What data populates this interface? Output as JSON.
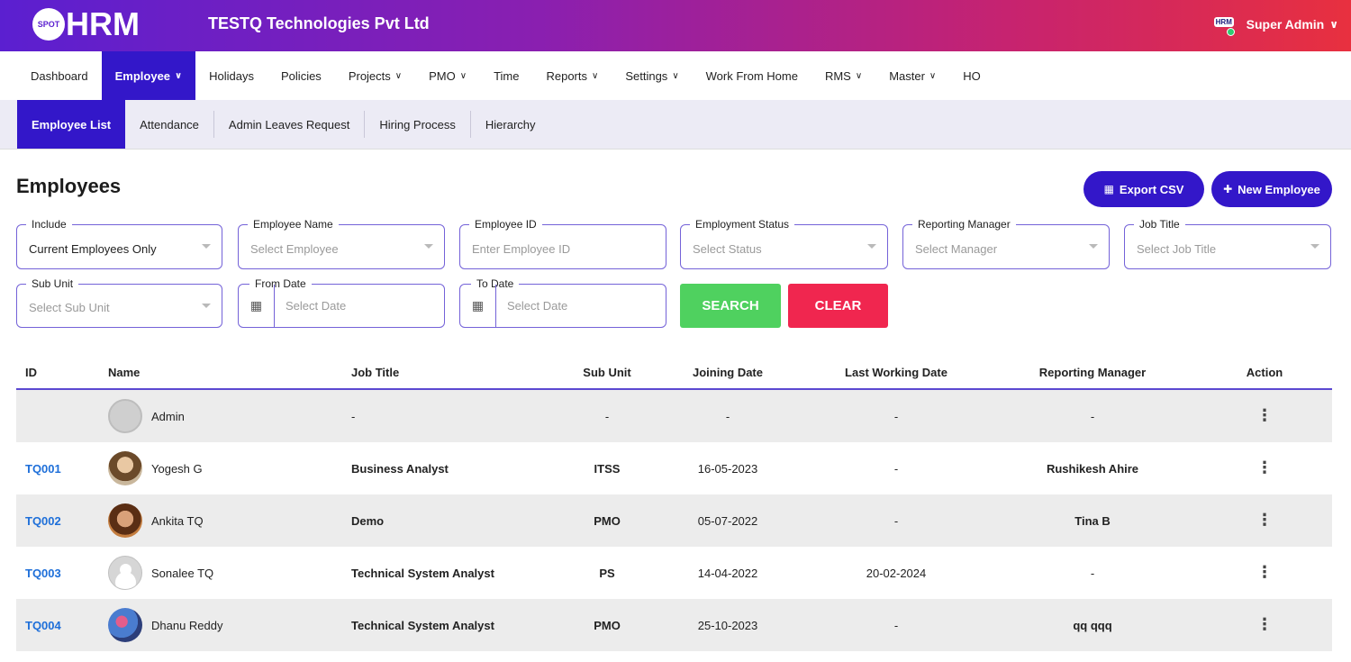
{
  "app": {
    "logo_badge": "SPOT",
    "logo_text": "HRM",
    "company": "TESTQ Technologies Pvt Ltd",
    "user_avatar_text": "HRM",
    "user_name": "Super Admin",
    "brand_color": "#3317c9"
  },
  "nav": {
    "items": [
      {
        "label": "Dashboard",
        "caret": ""
      },
      {
        "label": "Employee",
        "caret": "∨"
      },
      {
        "label": "Holidays",
        "caret": ""
      },
      {
        "label": "Policies",
        "caret": ""
      },
      {
        "label": "Projects",
        "caret": "∨"
      },
      {
        "label": "PMO",
        "caret": "∨"
      },
      {
        "label": "Time",
        "caret": ""
      },
      {
        "label": "Reports",
        "caret": "∨"
      },
      {
        "label": "Settings",
        "caret": "∨"
      },
      {
        "label": "Work From Home",
        "caret": ""
      },
      {
        "label": "RMS",
        "caret": "∨"
      },
      {
        "label": "Master",
        "caret": "∨"
      },
      {
        "label": "HO",
        "caret": ""
      }
    ]
  },
  "subnav": {
    "items": [
      "Employee List",
      "Attendance",
      "Admin Leaves Request",
      "Hiring Process",
      "Hierarchy"
    ]
  },
  "page": {
    "title": "Employees",
    "export_label": "Export CSV",
    "new_label": "New Employee"
  },
  "filters": {
    "include": {
      "label": "Include",
      "value": "Current Employees Only"
    },
    "employee_name": {
      "label": "Employee Name",
      "placeholder": "Select Employee"
    },
    "employee_id": {
      "label": "Employee ID",
      "placeholder": "Enter Employee ID"
    },
    "employment_status": {
      "label": "Employment Status",
      "placeholder": "Select Status"
    },
    "reporting_manager": {
      "label": "Reporting Manager",
      "placeholder": "Select Manager"
    },
    "job_title": {
      "label": "Job Title",
      "placeholder": "Select Job Title"
    },
    "sub_unit": {
      "label": "Sub Unit",
      "placeholder": "Select Sub Unit"
    },
    "from_date": {
      "label": "From Date",
      "placeholder": "Select Date"
    },
    "to_date": {
      "label": "To Date",
      "placeholder": "Select Date"
    },
    "search_label": "SEARCH",
    "clear_label": "CLEAR"
  },
  "table": {
    "headers": [
      "ID",
      "Name",
      "Job Title",
      "Sub Unit",
      "Joining Date",
      "Last Working Date",
      "Reporting Manager",
      "Action"
    ],
    "rows": [
      {
        "id": "",
        "name": "Admin",
        "job": "-",
        "sub": "-",
        "join": "-",
        "last": "-",
        "mgr": "-"
      },
      {
        "id": "TQ001",
        "name": "Yogesh G",
        "job": "Business Analyst",
        "sub": "ITSS",
        "join": "16-05-2023",
        "last": "-",
        "mgr": "Rushikesh Ahire"
      },
      {
        "id": "TQ002",
        "name": "Ankita TQ",
        "job": "Demo",
        "sub": "PMO",
        "join": "05-07-2022",
        "last": "-",
        "mgr": "Tina B"
      },
      {
        "id": "TQ003",
        "name": "Sonalee TQ",
        "job": "Technical System Analyst",
        "sub": "PS",
        "join": "14-04-2022",
        "last": "20-02-2024",
        "mgr": "-"
      },
      {
        "id": "TQ004",
        "name": "Dhanu Reddy",
        "job": "Technical System Analyst",
        "sub": "PMO",
        "join": "25-10-2023",
        "last": "-",
        "mgr": "qq qqq"
      }
    ],
    "action_icon": "⋮"
  }
}
